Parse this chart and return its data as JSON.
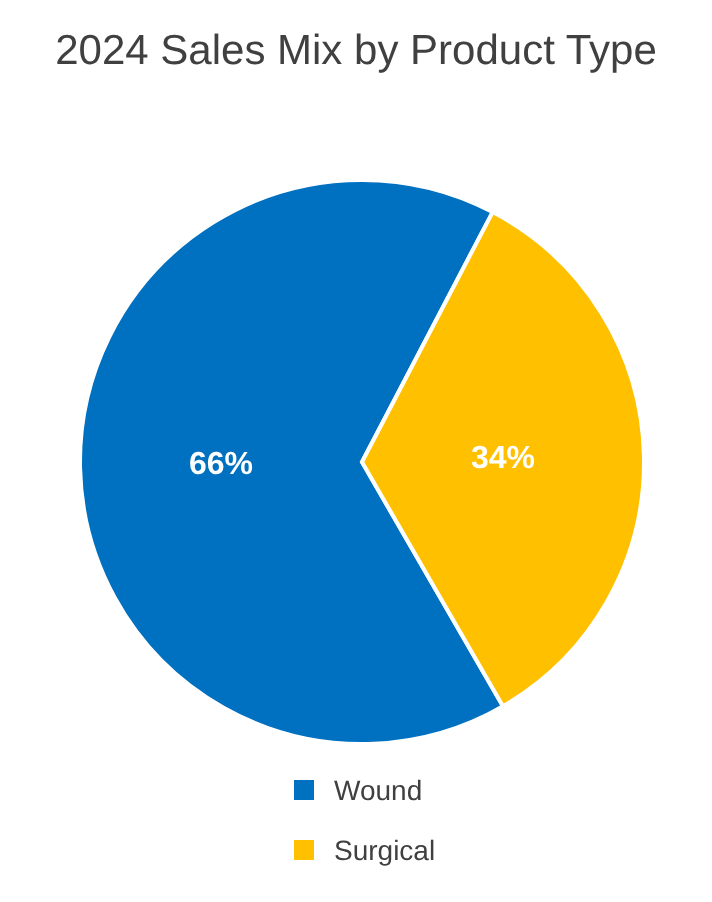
{
  "chart_data": {
    "type": "pie",
    "title": "2024 Sales Mix by Product Type",
    "categories": [
      "Wound",
      "Surgical"
    ],
    "values": [
      66,
      34
    ],
    "value_labels": [
      "66%",
      "34%"
    ],
    "colors": [
      "#0070c0",
      "#ffc000"
    ],
    "legend": "bottom"
  }
}
